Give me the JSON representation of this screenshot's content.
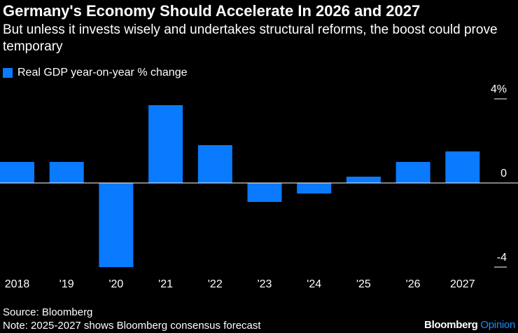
{
  "chart_data": {
    "type": "bar",
    "title": "Germany's Economy Should Accelerate In 2026 and 2027",
    "subtitle": "But unless it invests wisely and undertakes structural reforms, the boost could prove temporary",
    "legend": [
      {
        "name": "Real GDP year-on-year % change",
        "color": "#0a7aff"
      }
    ],
    "categories": [
      "2018",
      "'19",
      "'20",
      "'21",
      "'22",
      "'23",
      "'24",
      "'25",
      "'26",
      "2027"
    ],
    "series": [
      {
        "name": "Real GDP year-on-year % change",
        "values": [
          1.0,
          1.0,
          -4.0,
          3.7,
          1.8,
          -0.9,
          -0.5,
          0.3,
          1.0,
          1.5
        ]
      }
    ],
    "yticks": [
      4,
      0,
      -4
    ],
    "ytick_labels": [
      "4%",
      "0",
      "-4"
    ],
    "ylim": [
      -4,
      4
    ],
    "xlabel": "",
    "ylabel": "",
    "grid": false,
    "bar_color": "#0a7aff"
  },
  "footer": {
    "source": "Source: Bloomberg",
    "note": "Note: 2025-2027 shows Bloomberg consensus forecast"
  },
  "brand": {
    "primary": "Bloomberg",
    "accent": "Opinion",
    "accent_color": "#1a8cff"
  }
}
